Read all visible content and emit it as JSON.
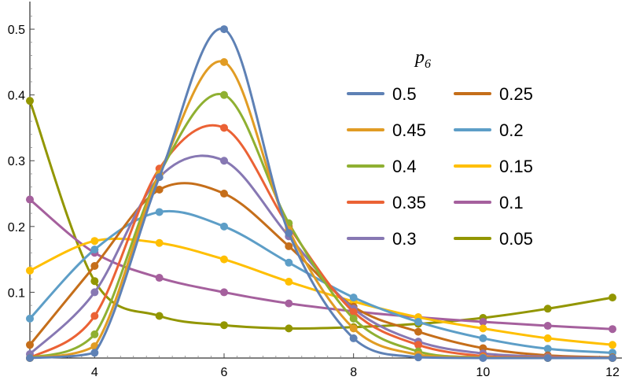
{
  "chart_data": {
    "type": "line",
    "title": "",
    "xlabel": "",
    "ylabel": "",
    "xlim": [
      3,
      12
    ],
    "ylim": [
      0,
      0.53
    ],
    "x_ticks": [
      4,
      6,
      8,
      10,
      12
    ],
    "y_ticks": [
      0.1,
      0.2,
      0.3,
      0.4,
      0.5
    ],
    "x_tick_labels": [
      "4",
      "6",
      "8",
      "10",
      "12"
    ],
    "y_tick_labels": [
      "0.1",
      "0.2",
      "0.3",
      "0.4",
      "0.5"
    ],
    "legend": {
      "title_main": "p",
      "title_sub": "6",
      "placement": "top-right"
    },
    "grid": false,
    "x": [
      3,
      4,
      5,
      6,
      7,
      8,
      9,
      10,
      11,
      12
    ],
    "series": [
      {
        "name": "0.5",
        "color": "#5E81B5",
        "values": [
          0.0,
          0.008,
          0.275,
          0.5,
          0.19,
          0.03,
          0.001,
          0.0,
          0.0,
          0.0
        ]
      },
      {
        "name": "0.45",
        "color": "#E19C24",
        "values": [
          0.0,
          0.018,
          0.28,
          0.45,
          0.195,
          0.045,
          0.005,
          0.001,
          0.0,
          0.0
        ]
      },
      {
        "name": "0.4",
        "color": "#8FB032",
        "values": [
          0.0,
          0.036,
          0.28,
          0.4,
          0.205,
          0.06,
          0.01,
          0.001,
          0.0,
          0.0
        ]
      },
      {
        "name": "0.35",
        "color": "#EB6235",
        "values": [
          0.0,
          0.064,
          0.288,
          0.35,
          0.2,
          0.07,
          0.02,
          0.003,
          0.001,
          0.0
        ]
      },
      {
        "name": "0.3",
        "color": "#8778B3",
        "values": [
          0.006,
          0.1,
          0.275,
          0.3,
          0.185,
          0.075,
          0.025,
          0.007,
          0.002,
          0.0
        ]
      },
      {
        "name": "0.25",
        "color": "#C56E1A",
        "values": [
          0.02,
          0.14,
          0.256,
          0.25,
          0.17,
          0.078,
          0.04,
          0.015,
          0.004,
          0.001
        ]
      },
      {
        "name": "0.2",
        "color": "#5D9EC7",
        "values": [
          0.06,
          0.165,
          0.222,
          0.2,
          0.145,
          0.092,
          0.055,
          0.03,
          0.014,
          0.008
        ]
      },
      {
        "name": "0.15",
        "color": "#FFBF00",
        "values": [
          0.133,
          0.178,
          0.175,
          0.15,
          0.116,
          0.086,
          0.062,
          0.045,
          0.03,
          0.02
        ]
      },
      {
        "name": "0.1",
        "color": "#A5609D",
        "values": [
          0.241,
          0.16,
          0.122,
          0.1,
          0.083,
          0.071,
          0.062,
          0.055,
          0.049,
          0.044
        ]
      },
      {
        "name": "0.05",
        "color": "#929600",
        "values": [
          0.391,
          0.117,
          0.064,
          0.05,
          0.045,
          0.047,
          0.052,
          0.061,
          0.075,
          0.092
        ]
      }
    ]
  }
}
